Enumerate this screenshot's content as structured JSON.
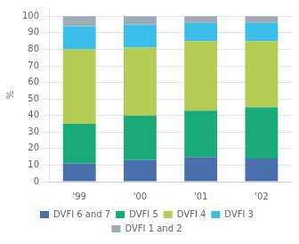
{
  "chart_data": {
    "type": "bar",
    "stacked": true,
    "categories": [
      "'99",
      "'00",
      "'01",
      "'02"
    ],
    "series": [
      {
        "name": "DVFI 6 and 7",
        "color": "#4a6fad",
        "values": [
          11,
          13,
          15,
          14
        ]
      },
      {
        "name": "DVFI 5",
        "color": "#1aaa7a",
        "values": [
          24,
          27,
          28,
          31
        ]
      },
      {
        "name": "DVFI 4",
        "color": "#b5cc55",
        "values": [
          45,
          41,
          42,
          40
        ]
      },
      {
        "name": "DVFI 3",
        "color": "#3bbfe8",
        "values": [
          14,
          14,
          11,
          11
        ]
      },
      {
        "name": "DVFI 1 and 2",
        "color": "#9eaab5",
        "values": [
          6,
          5,
          4,
          4
        ]
      }
    ],
    "ylabel": "%",
    "ylim": [
      0,
      105
    ],
    "yticks": [
      0,
      10,
      20,
      30,
      40,
      50,
      60,
      70,
      80,
      90,
      100
    ],
    "grid": true,
    "legend": "bottom"
  }
}
